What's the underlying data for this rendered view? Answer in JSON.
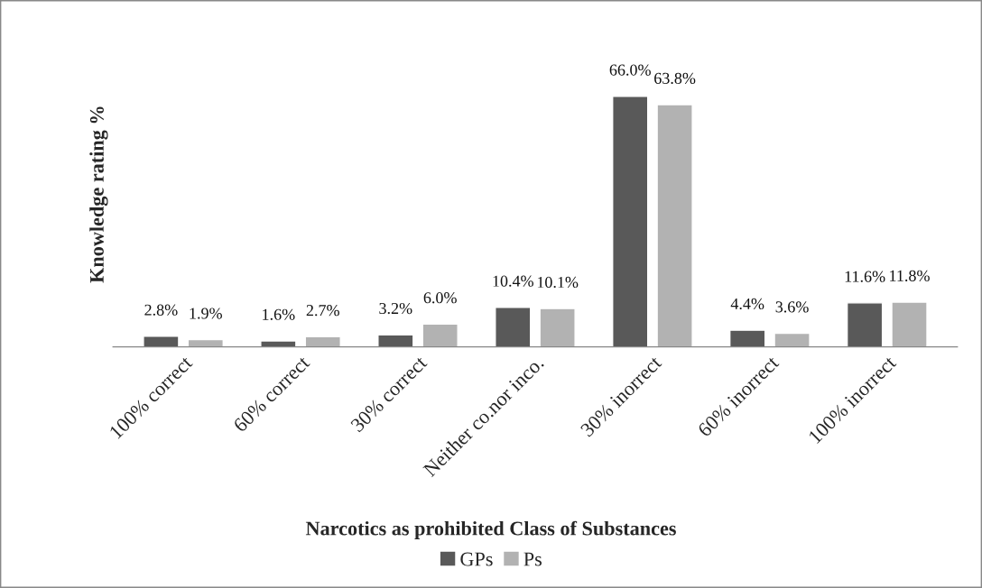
{
  "chart_data": {
    "type": "bar",
    "categories": [
      "100% correct",
      "60% correct",
      "30% correct",
      "Neither co.nor inco.",
      "30% inorrect",
      "60% inorrect",
      "100% inorrect"
    ],
    "xlabel": "Narcotics as prohibited Class of Substances",
    "ylabel": "Knowledge rating %",
    "series": [
      {
        "name": "GPs",
        "color": "#595959",
        "values": [
          2.8,
          1.6,
          3.2,
          10.4,
          66.0,
          4.4,
          11.6
        ],
        "value_labels": [
          "2.8%",
          "1.6%",
          "3.2%",
          "10.4%",
          "66.0%",
          "4.4%",
          "11.6%"
        ]
      },
      {
        "name": "Ps",
        "color": "#b2b2b2",
        "values": [
          1.9,
          2.7,
          6.0,
          10.1,
          63.8,
          3.6,
          11.8
        ],
        "value_labels": [
          "1.9%",
          "2.7%",
          "6.0%",
          "10.1%",
          "63.8%",
          "3.6%",
          "11.8%"
        ]
      }
    ],
    "legend": "bottom",
    "grid": false
  }
}
